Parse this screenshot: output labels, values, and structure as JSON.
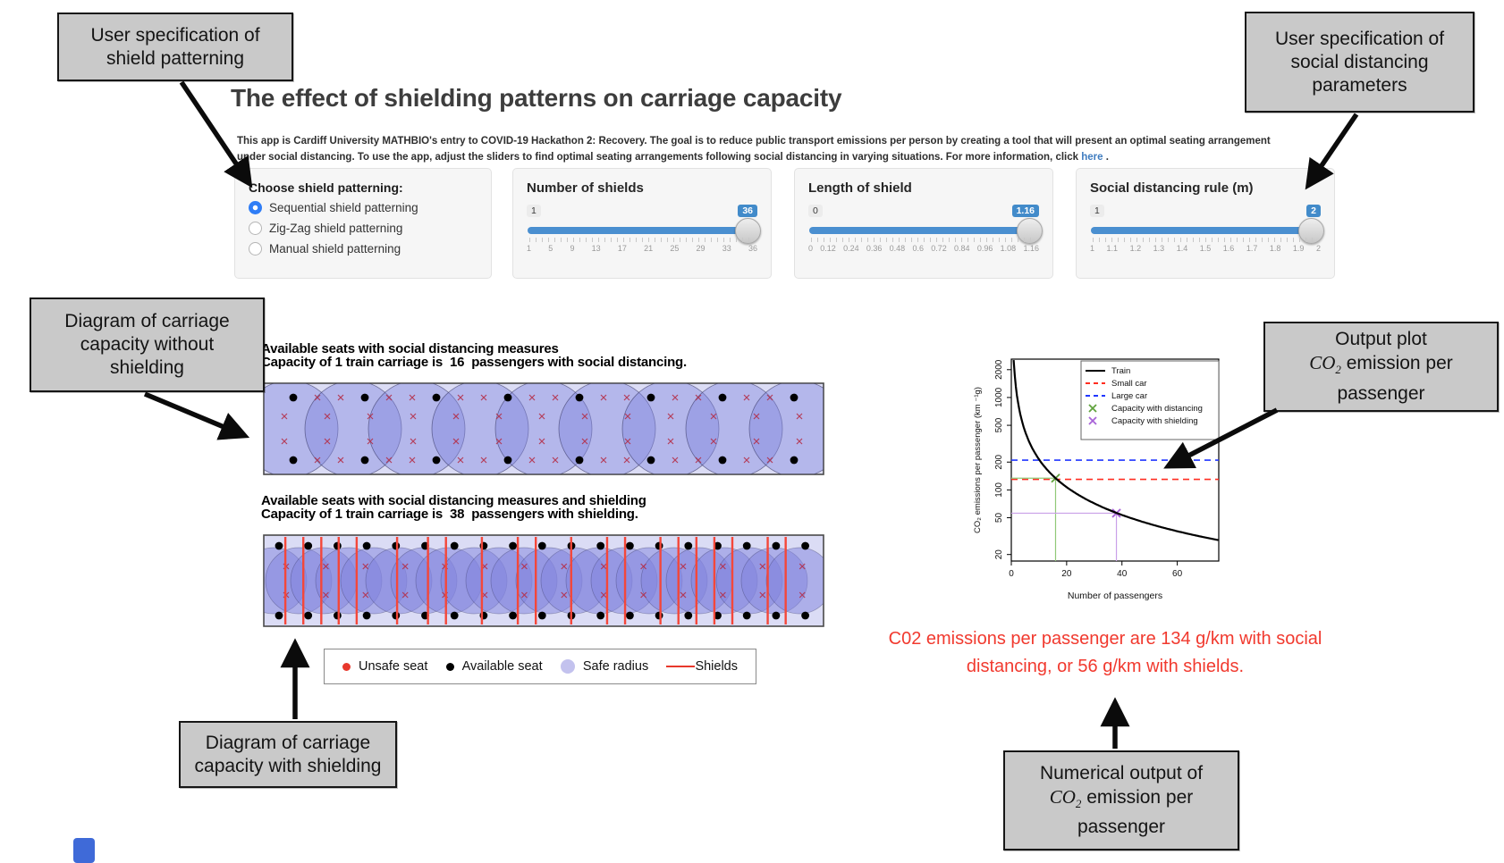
{
  "header": {
    "title": "The effect of shielding patterns on carriage capacity",
    "description": "This app is Cardiff University MATHBIO's entry to COVID-19 Hackathon 2: Recovery. The goal is to reduce public transport emissions per person by creating a tool that will present an optimal seating arrangement under social distancing. To use the app, adjust the sliders to find optimal seating arrangements following social distancing in varying situations. For more information, click",
    "link_text": "here",
    "after_link": " ."
  },
  "annotations": {
    "shield_patterning": {
      "lines": [
        "User specification of",
        "shield patterning"
      ]
    },
    "social_distancing": {
      "lines": [
        "User specification of",
        "social distancing",
        "parameters"
      ]
    },
    "without_shielding": {
      "lines": [
        "Diagram of carriage",
        "capacity without",
        "shielding"
      ]
    },
    "with_shielding": {
      "lines": [
        "Diagram of carriage",
        "capacity with shielding"
      ]
    },
    "output_plot": {
      "line1": "Output plot",
      "formula": "CO",
      "formula_sub": "2",
      "line2_rest": " emission per",
      "line3": "passenger"
    },
    "numerical_output": {
      "line1": "Numerical output of",
      "formula": "CO",
      "formula_sub": "2",
      "line2_rest": " emission per",
      "line3": "passenger"
    }
  },
  "controls": {
    "radio_group": {
      "label": "Choose shield patterning:",
      "options": [
        {
          "label": "Sequential shield patterning",
          "selected": true
        },
        {
          "label": "Zig-Zag shield patterning",
          "selected": false
        },
        {
          "label": "Manual shield patterning",
          "selected": false
        }
      ]
    },
    "sliders": [
      {
        "label": "Number of shields",
        "min_label": "1",
        "value": "36",
        "ticks": [
          "1",
          "5",
          "9",
          "13",
          "17",
          "21",
          "25",
          "29",
          "33",
          "36"
        ]
      },
      {
        "label": "Length of shield",
        "min_label": "0",
        "value": "1.16",
        "ticks": [
          "0",
          "0.12",
          "0.24",
          "0.36",
          "0.48",
          "0.6",
          "0.72",
          "0.84",
          "0.96",
          "1.08",
          "1.16"
        ]
      },
      {
        "label": "Social distancing rule (m)",
        "min_label": "1",
        "value": "2",
        "ticks": [
          "1",
          "1.1",
          "1.2",
          "1.3",
          "1.4",
          "1.5",
          "1.6",
          "1.7",
          "1.8",
          "1.9",
          "2"
        ]
      }
    ]
  },
  "diagrams": {
    "distancing": {
      "title": "Available seats with social distancing measures",
      "subtitle": "Capacity of 1 train carriage is  16  passengers with social distancing.",
      "available_seats": 16
    },
    "shielding": {
      "title": "Available seats with social distancing measures and shielding",
      "subtitle": "Capacity of 1 train carriage is  38  passengers with shielding.",
      "available_seats": 38,
      "shield_positions": [
        0.04,
        0.072,
        0.104,
        0.135,
        0.167,
        0.239,
        0.294,
        0.326,
        0.39,
        0.454,
        0.486,
        0.549,
        0.613,
        0.645,
        0.708,
        0.74,
        0.772,
        0.804,
        0.836,
        0.899,
        0.931
      ]
    },
    "legend": [
      {
        "label": "Unsafe seat",
        "swatch": "red-dot",
        "color": "#e8382c"
      },
      {
        "label": "Available seat",
        "swatch": "black-dot",
        "color": "#000000"
      },
      {
        "label": "Safe radius",
        "swatch": "lavender-circle",
        "color": "#c3c2ee"
      },
      {
        "label": "Shields",
        "swatch": "red-line",
        "color": "#e8382c"
      }
    ],
    "colors": {
      "carriage_fill": "#dbdcf5",
      "radius_fill": "#7f82dd",
      "unsafe_x": "#b4304a",
      "shield_line": "#f4473a"
    }
  },
  "chart_data": {
    "type": "line",
    "title": "",
    "xlabel": "Number of passengers",
    "ylabel": "CO₂ emissions per passenger (km ⁻¹g)",
    "x_ticks": [
      0,
      20,
      40,
      60
    ],
    "y_ticks": [
      20,
      50,
      100,
      200,
      500,
      1000,
      2000
    ],
    "y_scale": "log",
    "xlim": [
      0,
      75
    ],
    "ylim": [
      17,
      2600
    ],
    "grid": false,
    "legend_position": "top-right",
    "curve_formula": "y = 2144 / x",
    "series": [
      {
        "name": "Train",
        "kind": "curve",
        "color": "#000000",
        "style": "solid",
        "numerator": 2144
      },
      {
        "name": "Small car",
        "kind": "hline",
        "color": "#ff2d20",
        "style": "dashed",
        "y": 130
      },
      {
        "name": "Large car",
        "kind": "hline",
        "color": "#2036ff",
        "style": "dashed",
        "y": 210
      },
      {
        "name": "Capacity with distancing",
        "kind": "point",
        "color": "#61a33e",
        "drop_color": "#90c978",
        "marker": "x",
        "x": 16,
        "y": 134
      },
      {
        "name": "Capacity with shielding",
        "kind": "point",
        "color": "#a863d8",
        "drop_color": "#c9a0e8",
        "marker": "x",
        "x": 38,
        "y": 56
      }
    ]
  },
  "result": {
    "text": "C02 emissions per passenger are 134 g/km with social distancing, or 56 g/km with shields.",
    "color": "#f1392e"
  }
}
